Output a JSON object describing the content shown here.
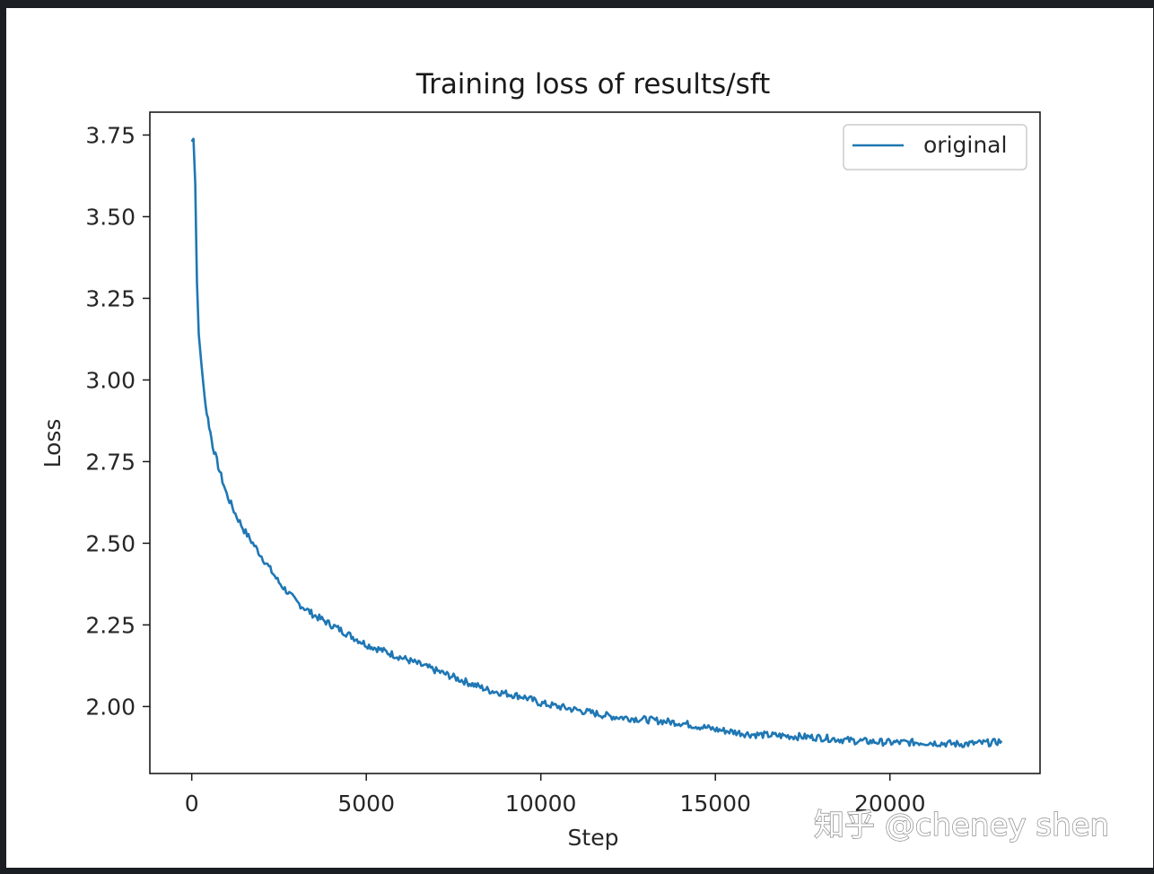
{
  "chart_data": {
    "type": "line",
    "title": "Training loss of results/sft",
    "xlabel": "Step",
    "ylabel": "Loss",
    "xlim": [
      -1200,
      24300
    ],
    "ylim": [
      1.795,
      3.82
    ],
    "xticks": [
      0,
      5000,
      10000,
      15000,
      20000
    ],
    "xtick_labels": [
      "0",
      "5000",
      "10000",
      "15000",
      "20000"
    ],
    "yticks": [
      2.0,
      2.25,
      2.5,
      2.75,
      3.0,
      3.25,
      3.5,
      3.75
    ],
    "ytick_labels": [
      "2.00",
      "2.25",
      "2.50",
      "2.75",
      "3.00",
      "3.25",
      "3.50",
      "3.75"
    ],
    "grid": false,
    "legend_position": "upper right",
    "colors": {
      "line": "#1f77b4"
    },
    "series": [
      {
        "name": "original",
        "x": [
          0,
          50,
          100,
          150,
          200,
          300,
          400,
          500,
          600,
          800,
          1000,
          1250,
          1500,
          1750,
          2000,
          2250,
          2500,
          2750,
          3000,
          3500,
          4000,
          4500,
          5000,
          5500,
          6000,
          6500,
          7000,
          7500,
          8000,
          8500,
          9000,
          9500,
          10000,
          11000,
          12000,
          13000,
          14000,
          15000,
          16000,
          17000,
          18000,
          19000,
          20000,
          21000,
          22000,
          23000,
          23200
        ],
        "y": [
          3.73,
          3.74,
          3.6,
          3.3,
          3.14,
          3.02,
          2.92,
          2.86,
          2.8,
          2.72,
          2.65,
          2.59,
          2.54,
          2.5,
          2.46,
          2.42,
          2.38,
          2.35,
          2.32,
          2.28,
          2.25,
          2.22,
          2.19,
          2.17,
          2.15,
          2.13,
          2.11,
          2.09,
          2.07,
          2.05,
          2.04,
          2.03,
          2.01,
          1.99,
          1.97,
          1.96,
          1.95,
          1.93,
          1.915,
          1.91,
          1.905,
          1.895,
          1.89,
          1.89,
          1.885,
          1.89,
          1.895
        ]
      }
    ]
  },
  "watermark": {
    "text": "知乎 @cheney shen"
  }
}
